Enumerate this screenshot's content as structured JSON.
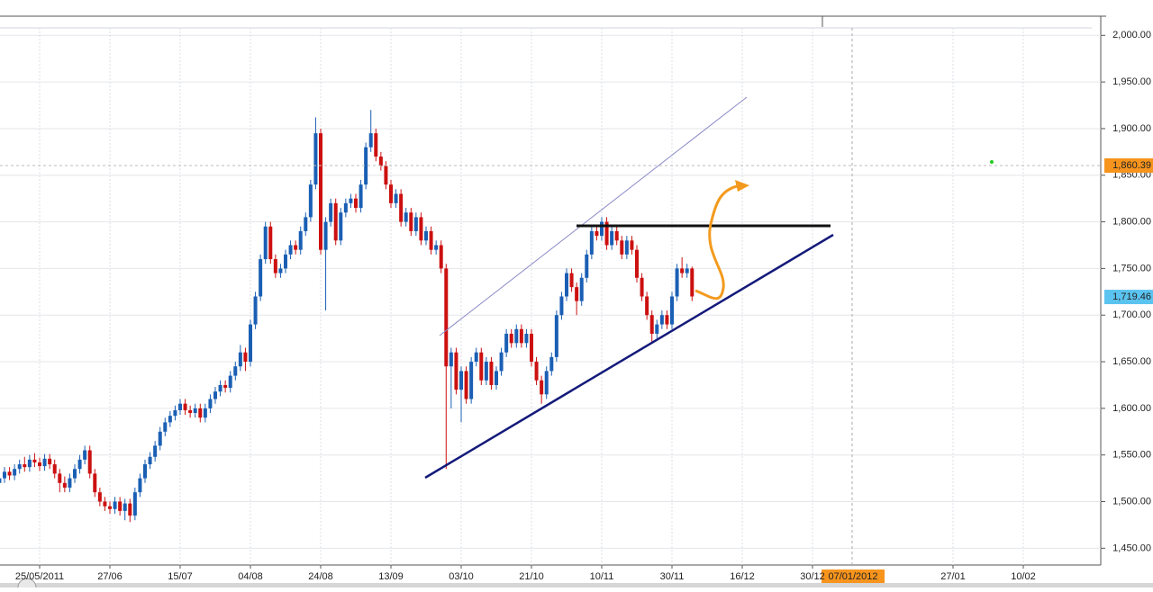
{
  "chart_data": {
    "type": "candlestick",
    "categories": [
      null,
      null,
      null,
      null,
      null,
      null,
      null,
      null,
      "25/05/2011",
      null,
      null,
      null,
      null,
      null,
      null,
      null,
      null,
      null,
      null,
      null,
      null,
      null,
      "27/06",
      null,
      null,
      null,
      null,
      null,
      null,
      null,
      null,
      null,
      null,
      null,
      null,
      null,
      "15/07",
      null,
      null,
      null,
      null,
      null,
      null,
      null,
      null,
      null,
      null,
      null,
      null,
      null,
      "04/08",
      null,
      null,
      null,
      null,
      null,
      null,
      null,
      null,
      null,
      null,
      null,
      null,
      null,
      "24/08",
      null,
      null,
      null,
      null,
      null,
      null,
      null,
      null,
      null,
      null,
      null,
      null,
      null,
      "13/09",
      null,
      null,
      null,
      null,
      null,
      null,
      null,
      null,
      null,
      null,
      null,
      null,
      null,
      "03/10",
      null,
      null,
      null,
      null,
      null,
      null,
      null,
      null,
      null,
      null,
      null,
      null,
      null,
      "21/10",
      null,
      null,
      null,
      null,
      null,
      null,
      null,
      null,
      null,
      null,
      null,
      null,
      null,
      "10/11",
      null,
      null,
      null,
      null,
      null,
      null,
      null,
      null,
      null,
      null,
      null,
      null,
      null,
      "30/11",
      null,
      null,
      null,
      null,
      null,
      null,
      null,
      null,
      null,
      null,
      null,
      null,
      null,
      "16/12",
      null,
      null,
      null,
      null,
      null,
      null,
      null,
      null,
      null,
      null,
      null,
      null,
      null,
      "30/12",
      null,
      null,
      null,
      null,
      null,
      null,
      null,
      null,
      null,
      null,
      null,
      null,
      null,
      null,
      null,
      null,
      null,
      null,
      null,
      null,
      null,
      null,
      null,
      null,
      null,
      null,
      null,
      "27/01",
      null,
      null,
      null,
      null,
      null,
      null,
      null,
      null,
      null,
      null,
      null,
      null,
      null,
      "10/02",
      null,
      null,
      null,
      null,
      null,
      null,
      null,
      null,
      null,
      null,
      null,
      null,
      null
    ],
    "values": [
      [
        1520,
        1530,
        1515,
        1525
      ],
      [
        1525,
        1537,
        1520,
        1532
      ],
      [
        1532,
        1537,
        1523,
        1528
      ],
      [
        1528,
        1540,
        1523,
        1535
      ],
      [
        1535,
        1545,
        1530,
        1540
      ],
      [
        1540,
        1548,
        1532,
        1537
      ],
      [
        1537,
        1550,
        1532,
        1545
      ],
      [
        1545,
        1552,
        1537,
        1542
      ],
      [
        1542,
        1547,
        1533,
        1538
      ],
      [
        1538,
        1551,
        1533,
        1546
      ],
      [
        1546,
        1551,
        1535,
        1540
      ],
      [
        1540,
        1545,
        1525,
        1530
      ],
      [
        1530,
        1535,
        1510,
        1520
      ],
      [
        1520,
        1527,
        1510,
        1515
      ],
      [
        1515,
        1530,
        1510,
        1525
      ],
      [
        1525,
        1540,
        1520,
        1535
      ],
      [
        1535,
        1550,
        1530,
        1545
      ],
      [
        1545,
        1560,
        1540,
        1555
      ],
      [
        1555,
        1560,
        1525,
        1530
      ],
      [
        1530,
        1535,
        1505,
        1510
      ],
      [
        1510,
        1515,
        1495,
        1500
      ],
      [
        1500,
        1505,
        1490,
        1495
      ],
      [
        1495,
        1500,
        1487,
        1492
      ],
      [
        1492,
        1505,
        1487,
        1500
      ],
      [
        1500,
        1505,
        1485,
        1490
      ],
      [
        1490,
        1503,
        1480,
        1498
      ],
      [
        1498,
        1503,
        1478,
        1485
      ],
      [
        1485,
        1515,
        1480,
        1510
      ],
      [
        1510,
        1530,
        1505,
        1525
      ],
      [
        1525,
        1545,
        1520,
        1540
      ],
      [
        1540,
        1553,
        1535,
        1548
      ],
      [
        1548,
        1565,
        1543,
        1560
      ],
      [
        1560,
        1580,
        1555,
        1575
      ],
      [
        1575,
        1590,
        1570,
        1585
      ],
      [
        1585,
        1597,
        1580,
        1592
      ],
      [
        1592,
        1603,
        1587,
        1598
      ],
      [
        1598,
        1610,
        1593,
        1605
      ],
      [
        1605,
        1610,
        1593,
        1598
      ],
      [
        1598,
        1603,
        1590,
        1595
      ],
      [
        1595,
        1605,
        1590,
        1600
      ],
      [
        1600,
        1605,
        1585,
        1590
      ],
      [
        1590,
        1605,
        1585,
        1600
      ],
      [
        1600,
        1615,
        1595,
        1610
      ],
      [
        1610,
        1623,
        1605,
        1618
      ],
      [
        1618,
        1630,
        1613,
        1625
      ],
      [
        1625,
        1630,
        1617,
        1622
      ],
      [
        1622,
        1640,
        1617,
        1635
      ],
      [
        1635,
        1650,
        1630,
        1645
      ],
      [
        1645,
        1668,
        1640,
        1660
      ],
      [
        1660,
        1665,
        1640,
        1650
      ],
      [
        1650,
        1695,
        1645,
        1690
      ],
      [
        1690,
        1725,
        1685,
        1720
      ],
      [
        1720,
        1765,
        1715,
        1760
      ],
      [
        1760,
        1800,
        1755,
        1795
      ],
      [
        1795,
        1800,
        1755,
        1760
      ],
      [
        1760,
        1765,
        1740,
        1745
      ],
      [
        1745,
        1755,
        1740,
        1750
      ],
      [
        1750,
        1770,
        1745,
        1765
      ],
      [
        1765,
        1780,
        1760,
        1775
      ],
      [
        1775,
        1780,
        1765,
        1770
      ],
      [
        1770,
        1795,
        1765,
        1790
      ],
      [
        1790,
        1810,
        1785,
        1805
      ],
      [
        1805,
        1845,
        1800,
        1840
      ],
      [
        1840,
        1912,
        1835,
        1895
      ],
      [
        1895,
        1900,
        1765,
        1770
      ],
      [
        1770,
        1805,
        1705,
        1800
      ],
      [
        1800,
        1825,
        1795,
        1820
      ],
      [
        1820,
        1825,
        1775,
        1780
      ],
      [
        1780,
        1815,
        1775,
        1810
      ],
      [
        1810,
        1825,
        1805,
        1820
      ],
      [
        1820,
        1830,
        1815,
        1825
      ],
      [
        1825,
        1830,
        1810,
        1815
      ],
      [
        1815,
        1845,
        1810,
        1840
      ],
      [
        1840,
        1885,
        1835,
        1880
      ],
      [
        1880,
        1920,
        1875,
        1895
      ],
      [
        1895,
        1900,
        1865,
        1870
      ],
      [
        1870,
        1875,
        1855,
        1860
      ],
      [
        1860,
        1865,
        1835,
        1840
      ],
      [
        1840,
        1845,
        1815,
        1820
      ],
      [
        1820,
        1835,
        1815,
        1830
      ],
      [
        1830,
        1835,
        1795,
        1800
      ],
      [
        1800,
        1815,
        1795,
        1810
      ],
      [
        1810,
        1815,
        1785,
        1790
      ],
      [
        1790,
        1810,
        1785,
        1805
      ],
      [
        1805,
        1810,
        1775,
        1780
      ],
      [
        1780,
        1795,
        1775,
        1790
      ],
      [
        1790,
        1795,
        1765,
        1770
      ],
      [
        1770,
        1780,
        1765,
        1775
      ],
      [
        1775,
        1780,
        1745,
        1750
      ],
      [
        1750,
        1755,
        1535,
        1645
      ],
      [
        1645,
        1665,
        1600,
        1660
      ],
      [
        1660,
        1665,
        1615,
        1620
      ],
      [
        1620,
        1645,
        1585,
        1640
      ],
      [
        1640,
        1645,
        1605,
        1610
      ],
      [
        1610,
        1655,
        1605,
        1650
      ],
      [
        1650,
        1665,
        1645,
        1660
      ],
      [
        1660,
        1665,
        1625,
        1630
      ],
      [
        1630,
        1655,
        1625,
        1650
      ],
      [
        1650,
        1655,
        1620,
        1625
      ],
      [
        1625,
        1645,
        1620,
        1640
      ],
      [
        1640,
        1665,
        1635,
        1660
      ],
      [
        1660,
        1685,
        1655,
        1680
      ],
      [
        1680,
        1685,
        1665,
        1670
      ],
      [
        1670,
        1690,
        1665,
        1685
      ],
      [
        1685,
        1690,
        1665,
        1670
      ],
      [
        1670,
        1685,
        1665,
        1680
      ],
      [
        1680,
        1685,
        1645,
        1650
      ],
      [
        1650,
        1655,
        1625,
        1630
      ],
      [
        1630,
        1635,
        1605,
        1615
      ],
      [
        1615,
        1645,
        1610,
        1640
      ],
      [
        1640,
        1660,
        1635,
        1655
      ],
      [
        1655,
        1705,
        1650,
        1700
      ],
      [
        1700,
        1725,
        1695,
        1720
      ],
      [
        1720,
        1750,
        1715,
        1745
      ],
      [
        1745,
        1750,
        1725,
        1730
      ],
      [
        1730,
        1735,
        1700,
        1715
      ],
      [
        1715,
        1745,
        1710,
        1740
      ],
      [
        1740,
        1770,
        1735,
        1765
      ],
      [
        1765,
        1795,
        1760,
        1790
      ],
      [
        1790,
        1795,
        1780,
        1785
      ],
      [
        1785,
        1805,
        1780,
        1800
      ],
      [
        1800,
        1805,
        1770,
        1775
      ],
      [
        1775,
        1795,
        1770,
        1790
      ],
      [
        1790,
        1795,
        1775,
        1780
      ],
      [
        1780,
        1785,
        1760,
        1765
      ],
      [
        1765,
        1785,
        1760,
        1780
      ],
      [
        1780,
        1785,
        1765,
        1770
      ],
      [
        1770,
        1775,
        1735,
        1740
      ],
      [
        1740,
        1745,
        1715,
        1720
      ],
      [
        1720,
        1725,
        1695,
        1700
      ],
      [
        1700,
        1705,
        1670,
        1680
      ],
      [
        1680,
        1695,
        1675,
        1690
      ],
      [
        1690,
        1705,
        1685,
        1700
      ],
      [
        1700,
        1705,
        1685,
        1690
      ],
      [
        1690,
        1725,
        1685,
        1720
      ],
      [
        1720,
        1755,
        1715,
        1750
      ],
      [
        1750,
        1762,
        1740,
        1745
      ],
      [
        1745,
        1755,
        1740,
        1750
      ],
      [
        1750,
        1752,
        1715,
        1720
      ],
      null,
      null,
      null,
      null,
      null,
      null,
      null,
      null,
      null,
      null,
      null,
      null,
      null,
      null,
      null,
      null,
      null,
      null,
      null,
      null,
      null,
      null,
      null,
      null,
      null,
      null,
      null,
      null,
      null,
      null,
      null,
      null,
      null,
      null,
      null,
      null,
      null,
      null,
      null,
      null,
      null,
      null,
      null,
      null,
      null,
      null,
      null,
      null,
      null,
      null,
      null,
      null,
      null,
      null,
      null,
      null,
      null,
      null,
      null,
      null,
      null,
      null,
      null,
      null,
      null,
      null,
      null,
      null,
      null,
      null,
      null,
      null,
      null,
      null,
      null,
      null,
      null,
      null,
      null
    ],
    "up_color": "#1a5fb4",
    "down_color": "#cc1010",
    "ylim": [
      1432,
      2008
    ],
    "yticks": [
      {
        "value": 2000,
        "label": "2,000.00"
      },
      {
        "value": 1950,
        "label": "1,950.00"
      },
      {
        "value": 1900,
        "label": "1,900.00"
      },
      {
        "value": 1850,
        "label": "1,850.00"
      },
      {
        "value": 1800,
        "label": "1,800.00"
      },
      {
        "value": 1750,
        "label": "1,750.00"
      },
      {
        "value": 1700,
        "label": "1,700.00"
      },
      {
        "value": 1650,
        "label": "1,650.00"
      },
      {
        "value": 1600,
        "label": "1,600.00"
      },
      {
        "value": 1550,
        "label": "1,550.00"
      },
      {
        "value": 1500,
        "label": "1,500.00"
      },
      {
        "value": 1450,
        "label": "1,450.00"
      }
    ],
    "price_markers": [
      {
        "value": 1860.39,
        "label": "1,860.39",
        "color": "#f7941d"
      },
      {
        "value": 1719.46,
        "label": "1,719.46",
        "color": "#5bc3f0"
      }
    ],
    "crosshair_label": "07/01/2012",
    "grid": true
  }
}
